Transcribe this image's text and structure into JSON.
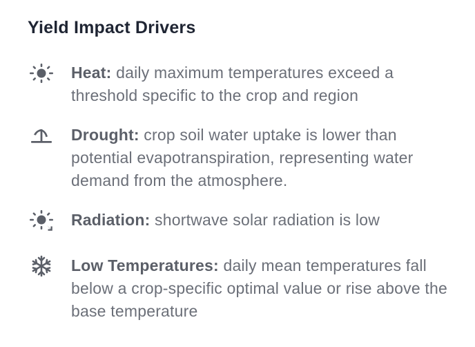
{
  "panel": {
    "title": "Yield Impact Drivers"
  },
  "drivers": [
    {
      "icon": "sun-icon",
      "label": "Heat:",
      "description": " daily maximum temperatures exceed a threshold specific to the crop and region"
    },
    {
      "icon": "drought-plant-icon",
      "label": "Drought:",
      "description": " crop soil water uptake is lower than potential evapotranspiration, representing water demand from the atmosphere."
    },
    {
      "icon": "sun-low-radiation-icon",
      "label": "Radiation:",
      "description": " shortwave solar radiation is low"
    },
    {
      "icon": "snowflake-icon",
      "label": "Low Temperatures:",
      "description": " daily mean temperatures fall below a crop-specific optimal value or rise above the base temperature"
    }
  ],
  "colors": {
    "title": "#1f2533",
    "text": "#6b6f78",
    "icon": "#5b5f68"
  }
}
